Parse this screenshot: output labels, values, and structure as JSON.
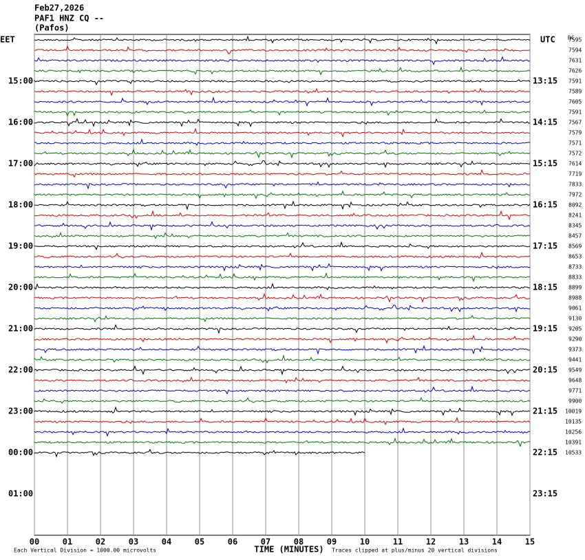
{
  "header": {
    "date": "Feb27,2026",
    "station": "PAF1 HNZ CQ --",
    "place": "(Pafos)"
  },
  "left_labels": [
    "EET",
    "15:00",
    "16:00",
    "17:00",
    "18:00",
    "19:00",
    "20:00",
    "21:00",
    "22:00",
    "23:00",
    "00:00",
    "01:00"
  ],
  "right_labels": [
    "UTC",
    "13:15",
    "14:15",
    "15:15",
    "16:15",
    "17:15",
    "18:15",
    "19:15",
    "20:15",
    "21:15",
    "22:15",
    "23:15"
  ],
  "dc_label": "DC",
  "dc_values": [
    "7595",
    "7594",
    "7631",
    "7626",
    "7591",
    "7589",
    "7605",
    "7591",
    "7567",
    "7579",
    "7571",
    "7572",
    "7614",
    "7719",
    "7833",
    "7972",
    "8092",
    "8241",
    "8345",
    "8457",
    "8569",
    "8653",
    "8733",
    "8833",
    "8899",
    "8988",
    "9061",
    "9130",
    "9205",
    "9290",
    "9373",
    "9441",
    "9549",
    "9648",
    "9771",
    "9900",
    "10019",
    "10135",
    "10256",
    "10391",
    "10533"
  ],
  "x_ticks": [
    "00",
    "01",
    "02",
    "03",
    "04",
    "05",
    "06",
    "07",
    "08",
    "09",
    "10",
    "11",
    "12",
    "13",
    "14",
    "15"
  ],
  "x_axis_label": "TIME (MINUTES)",
  "footer_left": "Each Vertical Division = 1000.00 microvolts",
  "footer_right": "Traces clipped at plus/minus 20 vertical divisions"
}
